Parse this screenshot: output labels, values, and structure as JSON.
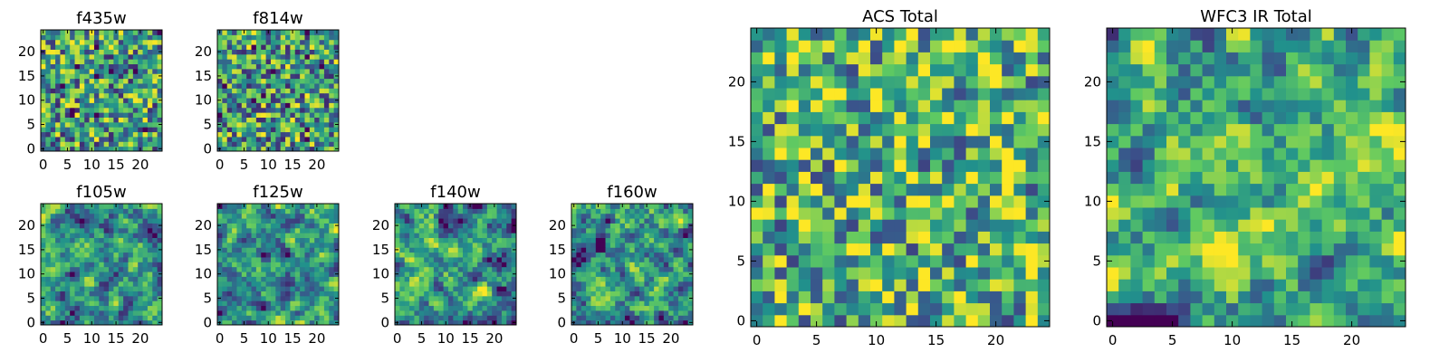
{
  "figure": {
    "title": ""
  },
  "colormap": {
    "name": "viridis",
    "stops": [
      "#440154",
      "#3b528b",
      "#21918c",
      "#5ec962",
      "#fde725"
    ]
  },
  "chart_data": [
    {
      "type": "heatmap",
      "title": "f435w",
      "grid": [
        25,
        25
      ],
      "xlim": [
        0,
        24
      ],
      "ylim": [
        0,
        24
      ],
      "xticks": [
        "0",
        "5",
        "10",
        "15",
        "20"
      ],
      "yticks": [
        "0",
        "5",
        "10",
        "15",
        "20"
      ],
      "value_range": [
        0,
        1
      ],
      "texture": "noisy",
      "seed": 11,
      "bias": 0.55
    },
    {
      "type": "heatmap",
      "title": "f814w",
      "grid": [
        25,
        25
      ],
      "xlim": [
        0,
        24
      ],
      "ylim": [
        0,
        24
      ],
      "xticks": [
        "0",
        "5",
        "10",
        "15",
        "20"
      ],
      "yticks": [
        "0",
        "5",
        "10",
        "15",
        "20"
      ],
      "value_range": [
        0,
        1
      ],
      "texture": "noisy",
      "seed": 23,
      "bias": 0.55
    },
    {
      "type": "heatmap",
      "title": "f105w",
      "grid": [
        25,
        25
      ],
      "xlim": [
        0,
        24
      ],
      "ylim": [
        0,
        24
      ],
      "xticks": [
        "0",
        "5",
        "10",
        "15",
        "20"
      ],
      "yticks": [
        "0",
        "5",
        "10",
        "15",
        "20"
      ],
      "value_range": [
        0,
        1
      ],
      "texture": "smooth",
      "seed": 37,
      "bias": 0.5
    },
    {
      "type": "heatmap",
      "title": "f125w",
      "grid": [
        25,
        25
      ],
      "xlim": [
        0,
        24
      ],
      "ylim": [
        0,
        24
      ],
      "xticks": [
        "0",
        "5",
        "10",
        "15",
        "20"
      ],
      "yticks": [
        "0",
        "5",
        "10",
        "15",
        "20"
      ],
      "value_range": [
        0,
        1
      ],
      "texture": "smooth",
      "seed": 41,
      "bias": 0.5
    },
    {
      "type": "heatmap",
      "title": "f140w",
      "grid": [
        25,
        25
      ],
      "xlim": [
        0,
        24
      ],
      "ylim": [
        0,
        24
      ],
      "xticks": [
        "0",
        "5",
        "10",
        "15",
        "20"
      ],
      "yticks": [
        "0",
        "5",
        "10",
        "15",
        "20"
      ],
      "value_range": [
        0,
        1
      ],
      "texture": "smooth",
      "seed": 53,
      "bias": 0.52
    },
    {
      "type": "heatmap",
      "title": "f160w",
      "grid": [
        25,
        25
      ],
      "xlim": [
        0,
        24
      ],
      "ylim": [
        0,
        24
      ],
      "xticks": [
        "0",
        "5",
        "10",
        "15",
        "20"
      ],
      "yticks": [
        "0",
        "5",
        "10",
        "15",
        "20"
      ],
      "value_range": [
        0,
        1
      ],
      "texture": "smooth",
      "seed": 67,
      "bias": 0.52
    },
    {
      "type": "heatmap",
      "title": "ACS Total",
      "grid": [
        25,
        25
      ],
      "xlim": [
        0,
        24
      ],
      "ylim": [
        0,
        24
      ],
      "xticks": [
        "0",
        "5",
        "10",
        "15",
        "20"
      ],
      "yticks": [
        "0",
        "5",
        "10",
        "15",
        "20"
      ],
      "value_range": [
        0,
        1
      ],
      "texture": "noisy",
      "seed": 79,
      "bias": 0.65
    },
    {
      "type": "heatmap",
      "title": "WFC3 IR Total",
      "grid": [
        25,
        25
      ],
      "xlim": [
        0,
        24
      ],
      "ylim": [
        0,
        24
      ],
      "xticks": [
        "0",
        "5",
        "10",
        "15",
        "20"
      ],
      "yticks": [
        "0",
        "5",
        "10",
        "15",
        "20"
      ],
      "value_range": [
        0,
        1
      ],
      "texture": "smooth",
      "seed": 97,
      "bias": 0.6
    }
  ]
}
